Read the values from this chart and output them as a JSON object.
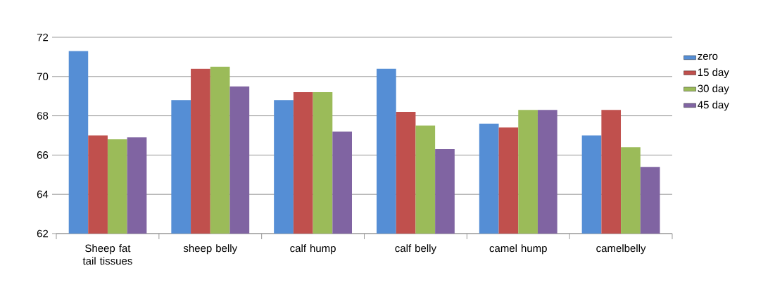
{
  "chart_data": {
    "type": "bar",
    "categories": [
      "Sheep fat tail tissues",
      "sheep belly",
      "calf hump",
      "calf belly",
      "camel hump",
      "camelbelly"
    ],
    "series": [
      {
        "name": "zero",
        "color": "#558ed5",
        "values": [
          71.3,
          68.8,
          68.8,
          70.4,
          67.6,
          67.0
        ]
      },
      {
        "name": "15 day",
        "color": "#c0504d",
        "values": [
          67.0,
          70.4,
          69.2,
          68.2,
          67.4,
          68.3
        ]
      },
      {
        "name": "30 day",
        "color": "#9bbb59",
        "values": [
          66.8,
          70.5,
          69.2,
          67.5,
          68.3,
          66.4
        ]
      },
      {
        "name": "45 day",
        "color": "#8064a2",
        "values": [
          66.9,
          69.5,
          67.2,
          66.3,
          68.3,
          65.4
        ]
      }
    ],
    "ylim": [
      62,
      72
    ],
    "yticks": [
      62,
      64,
      66,
      68,
      70,
      72
    ],
    "grid": "y",
    "legend": "right"
  }
}
